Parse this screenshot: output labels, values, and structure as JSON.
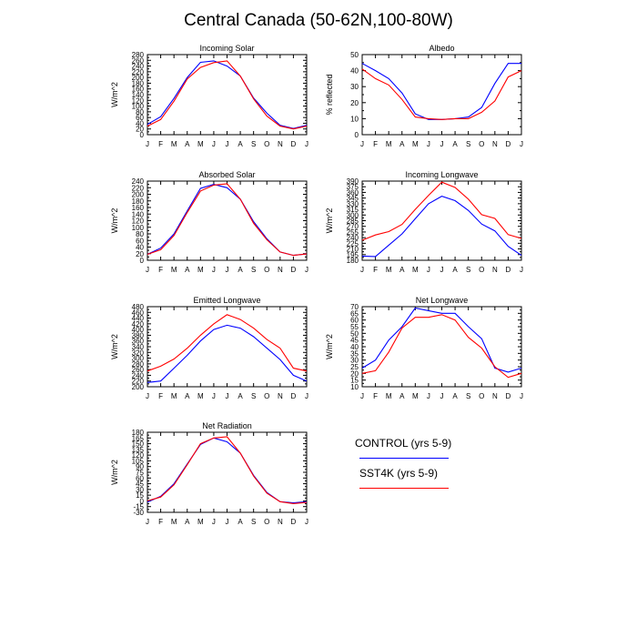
{
  "title": "Central Canada (50-62N,100-80W)",
  "colors": {
    "control": "#0000ff",
    "sst4k": "#ff0000",
    "axis": "#000000"
  },
  "legend": {
    "control_label": "CONTROL (yrs 5-9)",
    "sst4k_label": "SST4K (yrs 5-9)"
  },
  "chart_data": [
    {
      "type": "line",
      "title": "Incoming Solar",
      "xlabel": "",
      "ylabel": "W/m^2",
      "categories": [
        "J",
        "F",
        "M",
        "A",
        "M",
        "J",
        "J",
        "A",
        "S",
        "O",
        "N",
        "D",
        "J"
      ],
      "ylim": [
        0,
        280
      ],
      "yticks": [
        0,
        20,
        40,
        60,
        80,
        100,
        120,
        140,
        160,
        180,
        200,
        220,
        240,
        260,
        280
      ],
      "series": [
        {
          "key": "control",
          "values": [
            36,
            63,
            127,
            200,
            253,
            258,
            240,
            205,
            128,
            75,
            33,
            22,
            33
          ]
        },
        {
          "key": "sst4k",
          "values": [
            30,
            53,
            117,
            195,
            235,
            252,
            258,
            205,
            125,
            65,
            30,
            20,
            30
          ]
        }
      ]
    },
    {
      "type": "line",
      "title": "Albedo",
      "xlabel": "",
      "ylabel": "% reflected",
      "categories": [
        "J",
        "F",
        "M",
        "A",
        "M",
        "J",
        "J",
        "A",
        "S",
        "O",
        "N",
        "D",
        "J"
      ],
      "ylim": [
        0,
        50
      ],
      "yticks": [
        0,
        10,
        20,
        30,
        40,
        50
      ],
      "series": [
        {
          "key": "control",
          "values": [
            44.5,
            40,
            35,
            26,
            13,
            9.5,
            9.5,
            10,
            11,
            17,
            32,
            44.5,
            44.5
          ]
        },
        {
          "key": "sst4k",
          "values": [
            41,
            35,
            31,
            22,
            11,
            10,
            9.5,
            10,
            10,
            14,
            21,
            36,
            40
          ]
        }
      ]
    },
    {
      "type": "line",
      "title": "Absorbed Solar",
      "xlabel": "",
      "ylabel": "W/m^2",
      "categories": [
        "J",
        "F",
        "M",
        "A",
        "M",
        "J",
        "J",
        "A",
        "S",
        "O",
        "N",
        "D",
        "J"
      ],
      "ylim": [
        0,
        240
      ],
      "yticks": [
        0,
        20,
        40,
        60,
        80,
        100,
        120,
        140,
        160,
        180,
        200,
        220,
        240
      ],
      "series": [
        {
          "key": "control",
          "values": [
            18,
            37,
            80,
            150,
            218,
            230,
            220,
            185,
            117,
            65,
            25,
            15,
            19
          ]
        },
        {
          "key": "sst4k",
          "values": [
            18,
            32,
            75,
            145,
            210,
            228,
            232,
            185,
            112,
            62,
            25,
            15,
            19
          ]
        }
      ]
    },
    {
      "type": "line",
      "title": "Incoming Longwave",
      "xlabel": "",
      "ylabel": "W/m^2",
      "categories": [
        "J",
        "F",
        "M",
        "A",
        "M",
        "J",
        "J",
        "A",
        "S",
        "O",
        "N",
        "D",
        "J"
      ],
      "ylim": [
        180,
        390
      ],
      "yticks": [
        180,
        195,
        210,
        225,
        240,
        255,
        270,
        285,
        300,
        315,
        330,
        345,
        360,
        375,
        390
      ],
      "series": [
        {
          "key": "control",
          "values": [
            191,
            190,
            220,
            250,
            290,
            330,
            350,
            338,
            312,
            276,
            258,
            217,
            193
          ]
        },
        {
          "key": "sst4k",
          "values": [
            233,
            247,
            256,
            275,
            315,
            352,
            387,
            373,
            342,
            301,
            291,
            248,
            238
          ]
        }
      ]
    },
    {
      "type": "line",
      "title": "Emitted Longwave",
      "xlabel": "",
      "ylabel": "W/m^2",
      "categories": [
        "J",
        "F",
        "M",
        "A",
        "M",
        "J",
        "J",
        "A",
        "S",
        "O",
        "N",
        "D",
        "J"
      ],
      "ylim": [
        200,
        480
      ],
      "yticks": [
        200,
        220,
        240,
        260,
        280,
        300,
        320,
        340,
        360,
        380,
        400,
        420,
        440,
        460,
        480
      ],
      "series": [
        {
          "key": "control",
          "values": [
            215,
            220,
            265,
            310,
            360,
            400,
            415,
            405,
            375,
            335,
            295,
            240,
            220
          ]
        },
        {
          "key": "sst4k",
          "values": [
            255,
            272,
            297,
            335,
            380,
            420,
            452,
            435,
            405,
            365,
            335,
            265,
            255
          ]
        }
      ]
    },
    {
      "type": "line",
      "title": "Net Longwave",
      "xlabel": "",
      "ylabel": "W/m^2",
      "categories": [
        "J",
        "F",
        "M",
        "A",
        "M",
        "J",
        "J",
        "A",
        "S",
        "O",
        "N",
        "D",
        "J"
      ],
      "ylim": [
        10,
        70
      ],
      "yticks": [
        10,
        15,
        20,
        25,
        30,
        35,
        40,
        45,
        50,
        55,
        60,
        65,
        70
      ],
      "series": [
        {
          "key": "control",
          "values": [
            24,
            30,
            45,
            55,
            69,
            67,
            65,
            65,
            55,
            46,
            24,
            21,
            24
          ]
        },
        {
          "key": "sst4k",
          "values": [
            20,
            22,
            36,
            54,
            62,
            62,
            64,
            60,
            47,
            39,
            25,
            17,
            20
          ]
        }
      ]
    },
    {
      "type": "line",
      "title": "Net Radiation",
      "xlabel": "",
      "ylabel": "W/m^2",
      "categories": [
        "J",
        "F",
        "M",
        "A",
        "M",
        "J",
        "J",
        "A",
        "S",
        "O",
        "N",
        "D",
        "J"
      ],
      "ylim": [
        -30,
        180
      ],
      "yticks": [
        -30,
        -15,
        0,
        15,
        30,
        45,
        60,
        75,
        90,
        105,
        120,
        135,
        150,
        165,
        180
      ],
      "series": [
        {
          "key": "control",
          "values": [
            -3,
            12,
            45,
            97,
            148,
            165,
            155,
            125,
            67,
            22,
            -2,
            -5,
            -2
          ]
        },
        {
          "key": "sst4k",
          "values": [
            0,
            10,
            42,
            95,
            150,
            165,
            168,
            125,
            65,
            20,
            -2,
            -7,
            -4
          ]
        }
      ]
    }
  ]
}
